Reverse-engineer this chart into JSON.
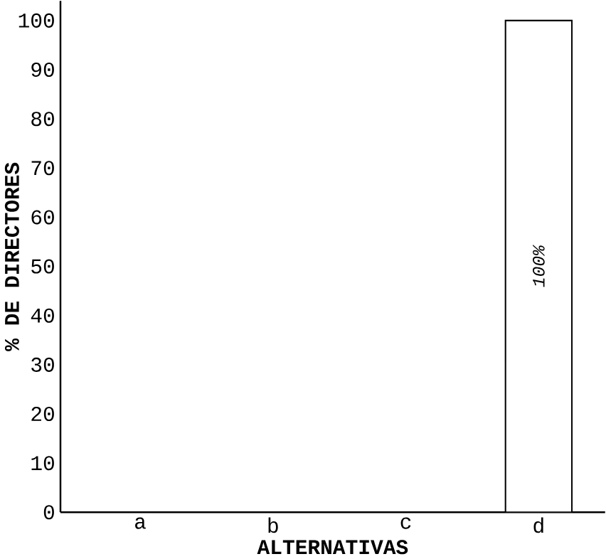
{
  "chart_data": {
    "type": "bar",
    "xlabel": "ALTERNATIVAS",
    "ylabel": "% DE DIRECTORES",
    "categories": [
      "a",
      "b",
      "c",
      "d"
    ],
    "values": [
      0,
      0,
      0,
      100
    ],
    "value_labels": [
      null,
      null,
      null,
      "100%"
    ],
    "ylim": [
      0,
      104
    ],
    "yticks": [
      0,
      10,
      20,
      30,
      40,
      50,
      60,
      70,
      80,
      90,
      100
    ],
    "grid": false
  }
}
